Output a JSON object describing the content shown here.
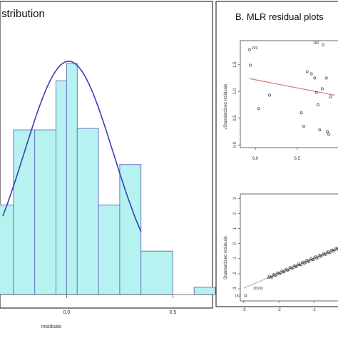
{
  "panel_a": {
    "title": "stribution"
  },
  "panel_b": {
    "title": "B. MLR residual plots"
  },
  "colors": {
    "bar_fill": "#b6f2f0",
    "bar_stroke": "#6d78c9",
    "curve": "#3a3fb2",
    "trend": "#d47a7a",
    "point": "#444444",
    "frame": "#333333"
  },
  "chart_data": [
    {
      "type": "bar",
      "title": "",
      "xlabel": "residuals",
      "ylabel": "",
      "x_ticks": [
        "0.0",
        "0.5"
      ],
      "xlim": [
        -0.3,
        0.7
      ],
      "bins": [
        {
          "start": -0.35,
          "end": -0.25,
          "density": 0.62
        },
        {
          "start": -0.25,
          "end": -0.15,
          "density": 1.14
        },
        {
          "start": -0.15,
          "end": -0.05,
          "density": 1.14
        },
        {
          "start": -0.05,
          "end": 0.0,
          "density": 1.48
        },
        {
          "start": 0.0,
          "end": 0.05,
          "density": 1.6
        },
        {
          "start": 0.05,
          "end": 0.15,
          "density": 1.15
        },
        {
          "start": 0.15,
          "end": 0.25,
          "density": 0.62
        },
        {
          "start": 0.25,
          "end": 0.35,
          "density": 0.9
        },
        {
          "start": 0.35,
          "end": 0.5,
          "density": 0.3
        },
        {
          "start": 0.6,
          "end": 0.7,
          "density": 0.05
        }
      ],
      "density_curve": {
        "type": "normal",
        "mean": 0.01,
        "sd": 0.21
      },
      "ylim": [
        0,
        1.95
      ]
    },
    {
      "type": "scatter",
      "title": "",
      "xlabel": "",
      "ylabel": "√Standardized residuals",
      "x_ticks": [
        "6.0",
        "6.5"
      ],
      "y_ticks": [
        "0.0",
        "0.5",
        "1.0",
        "1.5"
      ],
      "xlim": [
        5.82,
        7.1
      ],
      "ylim": [
        -0.05,
        1.95
      ],
      "points": [
        {
          "x": 5.93,
          "y": 1.78,
          "label": "269"
        },
        {
          "x": 5.94,
          "y": 1.49
        },
        {
          "x": 6.04,
          "y": 0.68
        },
        {
          "x": 6.17,
          "y": 0.93
        },
        {
          "x": 6.55,
          "y": 0.6
        },
        {
          "x": 6.58,
          "y": 0.35
        },
        {
          "x": 6.62,
          "y": 1.37
        },
        {
          "x": 6.67,
          "y": 1.33
        },
        {
          "x": 6.71,
          "y": 1.25
        },
        {
          "x": 6.73,
          "y": 0.98
        },
        {
          "x": 6.75,
          "y": 0.75
        },
        {
          "x": 6.77,
          "y": 0.28
        },
        {
          "x": 6.8,
          "y": 1.05
        },
        {
          "x": 6.81,
          "y": 1.87,
          "label": "182"
        },
        {
          "x": 6.85,
          "y": 1.25
        },
        {
          "x": 6.86,
          "y": 0.25
        },
        {
          "x": 6.88,
          "y": 0.2
        },
        {
          "x": 6.9,
          "y": 0.9
        }
      ],
      "trend": [
        {
          "x": 5.93,
          "y": 1.24
        },
        {
          "x": 6.95,
          "y": 0.93
        }
      ]
    },
    {
      "type": "scatter",
      "title": "",
      "xlabel": "",
      "ylabel": "Standardized residuals",
      "x_ticks": [
        "-3",
        "-2",
        "-1"
      ],
      "y_ticks": [
        "-3",
        "-2",
        "-1",
        "0",
        "1",
        "2",
        "3"
      ],
      "xlim": [
        -3.1,
        -0.05
      ],
      "ylim": [
        -3.8,
        3.3
      ],
      "labeled_points": [
        {
          "x": -2.95,
          "y": -3.45,
          "label": "182"
        },
        {
          "x": -2.5,
          "y": -2.95,
          "label": "269"
        }
      ],
      "reference_line": [
        {
          "x": -3.0,
          "y": -2.95
        },
        {
          "x": 0.0,
          "y": 0.0
        }
      ]
    }
  ]
}
